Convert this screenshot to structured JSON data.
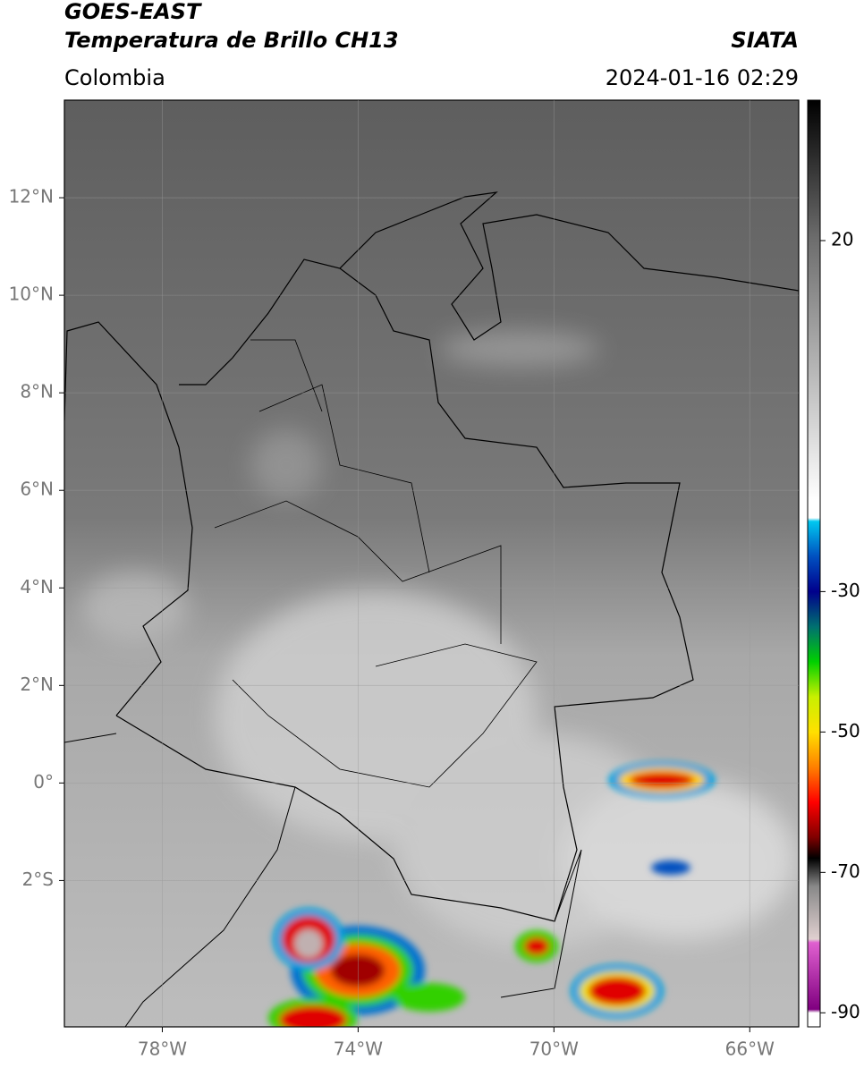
{
  "header": {
    "title": "GOES-EAST",
    "subtitle": "Temperatura de Brillo CH13",
    "source": "SIATA",
    "region": "Colombia",
    "timestamp": "2024-01-16 02:29"
  },
  "map": {
    "xlim": [
      -80,
      -65
    ],
    "ylim": [
      -5,
      14
    ],
    "xticks": [
      {
        "value": -78,
        "label": "78°W"
      },
      {
        "value": -74,
        "label": "74°W"
      },
      {
        "value": -70,
        "label": "70°W"
      },
      {
        "value": -66,
        "label": "66°W"
      }
    ],
    "yticks": [
      {
        "value": 12,
        "label": "12°N"
      },
      {
        "value": 10,
        "label": "10°N"
      },
      {
        "value": 8,
        "label": "8°N"
      },
      {
        "value": 6,
        "label": "6°N"
      },
      {
        "value": 4,
        "label": "4°N"
      },
      {
        "value": 2,
        "label": "2°N"
      },
      {
        "value": 0,
        "label": "0°"
      },
      {
        "value": -2,
        "label": "2°S"
      }
    ],
    "grid": true
  },
  "colorbar": {
    "lim": [
      -92,
      40
    ],
    "ticks": [
      20,
      -30,
      -50,
      -70,
      -90
    ],
    "stops": [
      {
        "value": 40,
        "color": "#000000"
      },
      {
        "value": 20,
        "color": "#6e6e6e"
      },
      {
        "value": -17,
        "color": "#ffffff"
      },
      {
        "value": -19.5,
        "color": "#ffffff"
      },
      {
        "value": -20,
        "color": "#00c8f0"
      },
      {
        "value": -25,
        "color": "#0050c0"
      },
      {
        "value": -30,
        "color": "#00008c"
      },
      {
        "value": -35,
        "color": "#007070"
      },
      {
        "value": -40,
        "color": "#00d000"
      },
      {
        "value": -45,
        "color": "#c8f000"
      },
      {
        "value": -50,
        "color": "#ffe000"
      },
      {
        "value": -55,
        "color": "#ff8000"
      },
      {
        "value": -60,
        "color": "#ff0000"
      },
      {
        "value": -65,
        "color": "#800000"
      },
      {
        "value": -68,
        "color": "#000000"
      },
      {
        "value": -72,
        "color": "#888888"
      },
      {
        "value": -79.5,
        "color": "#e0d0d0"
      },
      {
        "value": -80,
        "color": "#e060d0"
      },
      {
        "value": -89.5,
        "color": "#800080"
      },
      {
        "value": -90,
        "color": "#ffffff"
      },
      {
        "value": -92,
        "color": "#ffffff"
      }
    ]
  }
}
